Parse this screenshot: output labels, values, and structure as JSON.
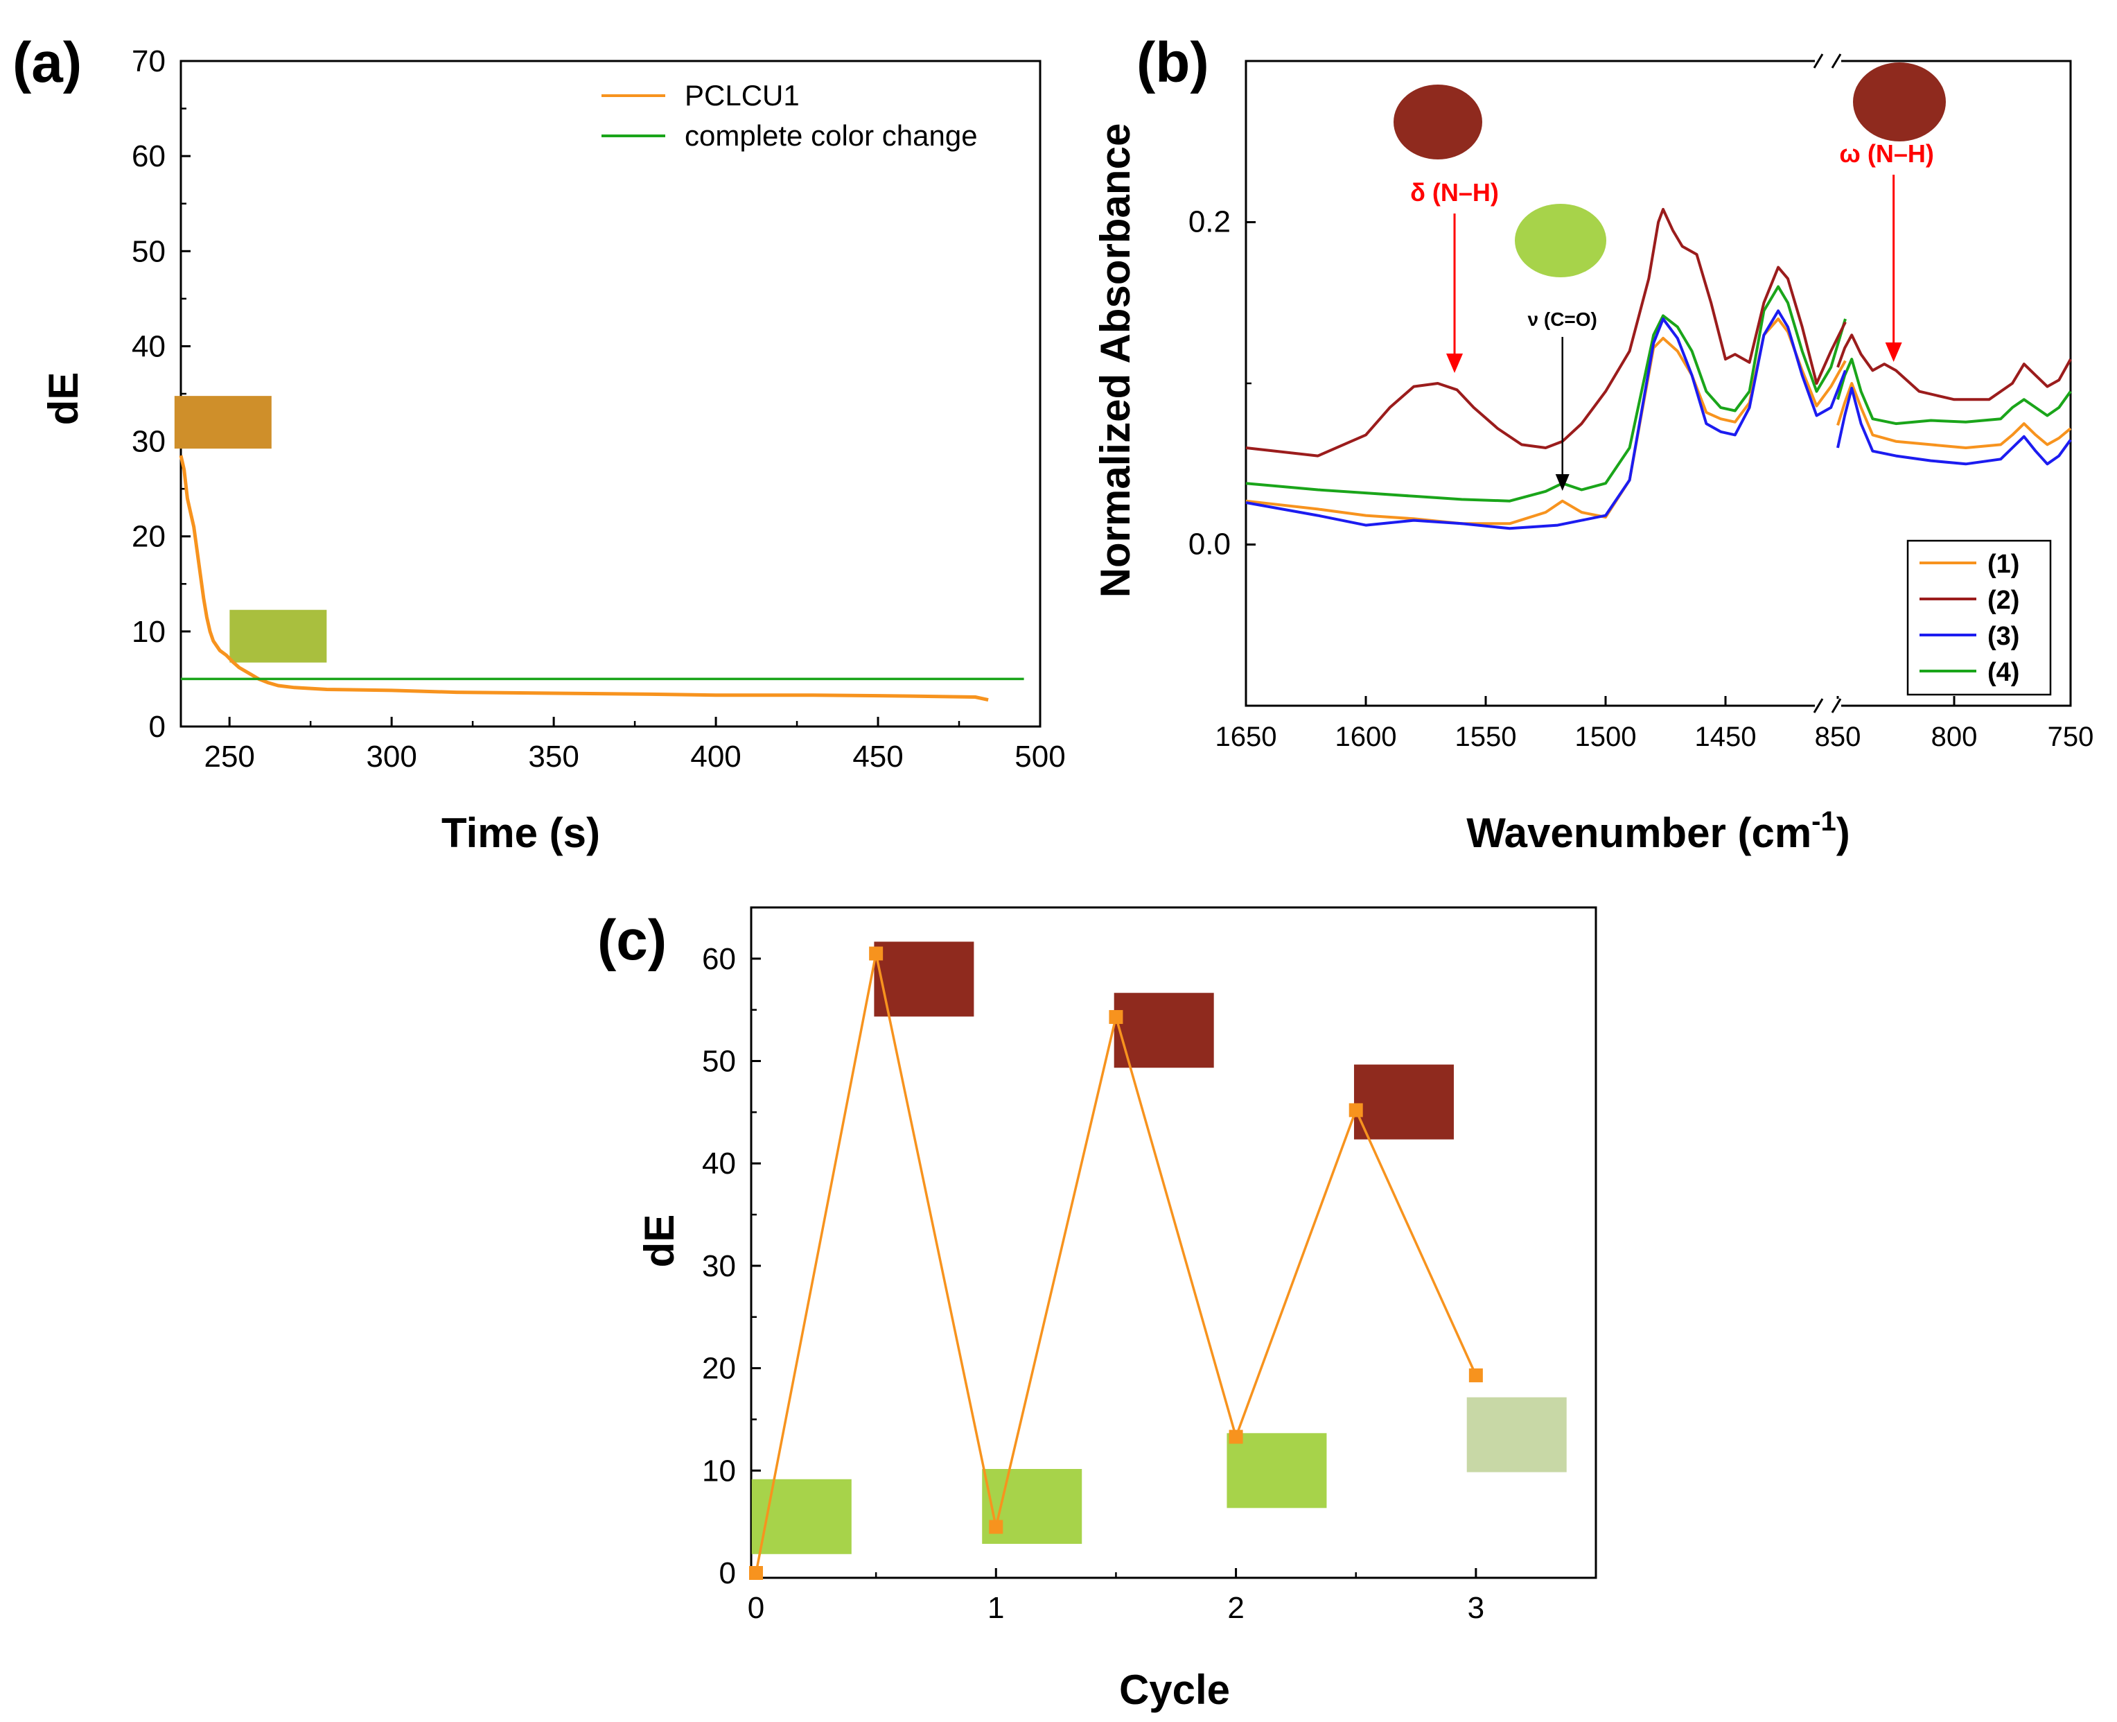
{
  "colors": {
    "orange": "#f7931e",
    "darkred": "#9b1c1c",
    "blue": "#1c1cf0",
    "green": "#1aa51a",
    "red_label": "#ff0000",
    "axis": "#000000",
    "swatch_orange": "#cf8f2a",
    "swatch_yellowgreen": "#a9bf3e",
    "swatch_red": "#8f2a1e",
    "swatch_green": "#a7d34a",
    "swatch_lightgreen": "#c8d8a6"
  },
  "chart_data": [
    {
      "panel": "(a)",
      "type": "line",
      "xlabel": "Time (s)",
      "ylabel": "dE",
      "xlim": [
        235,
        500
      ],
      "ylim": [
        0,
        70
      ],
      "xticks": [
        250,
        300,
        350,
        400,
        450,
        500
      ],
      "yticks": [
        0,
        10,
        20,
        30,
        40,
        50,
        60,
        70
      ],
      "legend": [
        "PCLCU1",
        "complete color change"
      ],
      "legend_position": "top-right",
      "series": [
        {
          "name": "PCLCU1",
          "x": [
            235,
            236,
            237,
            238,
            239,
            240,
            241,
            242,
            243,
            244,
            245,
            247,
            249,
            251,
            253,
            256,
            259,
            262,
            265,
            270,
            280,
            300,
            320,
            350,
            380,
            400,
            430,
            460,
            480,
            484
          ],
          "y": [
            28.5,
            27,
            24,
            22.5,
            21,
            18.5,
            16,
            13.5,
            11.5,
            10,
            9,
            8,
            7.5,
            6.8,
            6.2,
            5.6,
            5.0,
            4.6,
            4.3,
            4.1,
            3.9,
            3.8,
            3.6,
            3.5,
            3.4,
            3.3,
            3.3,
            3.2,
            3.1,
            2.8
          ]
        },
        {
          "name": "complete color change",
          "x": [
            235,
            495
          ],
          "y": [
            5,
            5
          ]
        }
      ],
      "swatches": [
        {
          "x": 248,
          "y": 32,
          "color": "orange"
        },
        {
          "x": 265,
          "y": 9.5,
          "color": "yellowgreen"
        }
      ]
    },
    {
      "panel": "(b)",
      "type": "line",
      "xlabel": "Wavenumber (cm",
      "xlabel_sup": "-1",
      "xlabel_end": ")",
      "ylabel": "Normalized Absorbance",
      "ylim": [
        -0.1,
        0.3
      ],
      "yticks": [
        0.0,
        0.2
      ],
      "yticklabels": [
        "0.0",
        "0.2"
      ],
      "segments": [
        {
          "xlim": [
            1650,
            1400
          ],
          "xticks": [
            1650,
            1600,
            1550,
            1500,
            1450
          ],
          "xticklabels": [
            "1650",
            "1600",
            "1550",
            "1500",
            "1450"
          ]
        },
        {
          "xlim": [
            850,
            750
          ],
          "xticks": [
            850,
            800,
            750
          ],
          "xticklabels": [
            "850",
            "800",
            "750"
          ]
        }
      ],
      "legend": [
        "(1)",
        "(2)",
        "(3)",
        "(4)"
      ],
      "legend_position": "bottom-right",
      "series": [
        {
          "name": "(1)",
          "x1": [
            1650,
            1620,
            1600,
            1580,
            1560,
            1540,
            1525,
            1518,
            1510,
            1500,
            1490,
            1480,
            1476,
            1470,
            1464,
            1458,
            1452,
            1446,
            1440,
            1434,
            1428,
            1424,
            1418,
            1412,
            1406,
            1400
          ],
          "y1": [
            0.027,
            0.022,
            0.018,
            0.016,
            0.013,
            0.013,
            0.02,
            0.027,
            0.02,
            0.017,
            0.04,
            0.122,
            0.128,
            0.12,
            0.105,
            0.082,
            0.078,
            0.076,
            0.088,
            0.13,
            0.14,
            0.132,
            0.108,
            0.086,
            0.098,
            0.114
          ],
          "x2": [
            850,
            847,
            844,
            840,
            835,
            825,
            810,
            795,
            780,
            775,
            770,
            765,
            760,
            755,
            750
          ],
          "y2": [
            0.074,
            0.088,
            0.1,
            0.085,
            0.068,
            0.064,
            0.062,
            0.06,
            0.062,
            0.068,
            0.075,
            0.068,
            0.062,
            0.066,
            0.072
          ]
        },
        {
          "name": "(2)",
          "x1": [
            1650,
            1620,
            1600,
            1590,
            1580,
            1570,
            1562,
            1555,
            1545,
            1535,
            1525,
            1518,
            1510,
            1500,
            1490,
            1482,
            1478,
            1476,
            1472,
            1468,
            1462,
            1456,
            1450,
            1446,
            1440,
            1434,
            1428,
            1424,
            1418,
            1412,
            1406,
            1400
          ],
          "y1": [
            0.06,
            0.055,
            0.068,
            0.085,
            0.098,
            0.1,
            0.096,
            0.085,
            0.072,
            0.062,
            0.06,
            0.064,
            0.075,
            0.095,
            0.12,
            0.165,
            0.2,
            0.208,
            0.195,
            0.185,
            0.18,
            0.15,
            0.115,
            0.118,
            0.113,
            0.15,
            0.172,
            0.165,
            0.135,
            0.1,
            0.12,
            0.138
          ],
          "x2": [
            850,
            847,
            844,
            840,
            835,
            830,
            825,
            815,
            800,
            785,
            775,
            770,
            765,
            760,
            755,
            750
          ],
          "y2": [
            0.11,
            0.122,
            0.13,
            0.118,
            0.108,
            0.112,
            0.108,
            0.095,
            0.09,
            0.09,
            0.1,
            0.112,
            0.105,
            0.098,
            0.102,
            0.115
          ]
        },
        {
          "name": "(3)",
          "x1": [
            1650,
            1620,
            1600,
            1580,
            1560,
            1540,
            1520,
            1510,
            1500,
            1490,
            1480,
            1476,
            1470,
            1464,
            1458,
            1452,
            1446,
            1440,
            1434,
            1428,
            1424,
            1418,
            1412,
            1406,
            1400
          ],
          "y1": [
            0.026,
            0.018,
            0.012,
            0.015,
            0.013,
            0.01,
            0.012,
            0.015,
            0.018,
            0.04,
            0.125,
            0.14,
            0.128,
            0.105,
            0.075,
            0.07,
            0.068,
            0.085,
            0.13,
            0.145,
            0.135,
            0.105,
            0.08,
            0.085,
            0.108
          ],
          "x2": [
            850,
            847,
            844,
            840,
            835,
            825,
            810,
            795,
            780,
            775,
            770,
            765,
            760,
            755,
            750
          ],
          "y2": [
            0.06,
            0.08,
            0.097,
            0.075,
            0.058,
            0.055,
            0.052,
            0.05,
            0.053,
            0.06,
            0.067,
            0.058,
            0.05,
            0.055,
            0.065
          ]
        },
        {
          "name": "(4)",
          "x1": [
            1650,
            1620,
            1600,
            1580,
            1560,
            1540,
            1525,
            1518,
            1510,
            1500,
            1490,
            1480,
            1476,
            1470,
            1464,
            1458,
            1452,
            1446,
            1440,
            1434,
            1428,
            1424,
            1418,
            1412,
            1406,
            1400
          ],
          "y1": [
            0.038,
            0.034,
            0.032,
            0.03,
            0.028,
            0.027,
            0.033,
            0.038,
            0.034,
            0.038,
            0.06,
            0.13,
            0.142,
            0.135,
            0.12,
            0.095,
            0.085,
            0.083,
            0.095,
            0.145,
            0.16,
            0.15,
            0.12,
            0.095,
            0.11,
            0.14
          ],
          "x2": [
            850,
            847,
            844,
            840,
            835,
            825,
            810,
            795,
            780,
            775,
            770,
            765,
            760,
            755,
            750
          ],
          "y2": [
            0.09,
            0.105,
            0.115,
            0.095,
            0.078,
            0.075,
            0.077,
            0.076,
            0.078,
            0.085,
            0.09,
            0.085,
            0.08,
            0.085,
            0.095
          ]
        }
      ],
      "annotations": [
        {
          "label": "δ (N–H)",
          "x": 1563,
          "color": "red"
        },
        {
          "label": "ν (C=O)",
          "x": 1518,
          "color": "black"
        },
        {
          "label": "ω (N–H)",
          "x": 826,
          "color": "red"
        }
      ],
      "break_mark": "//"
    },
    {
      "panel": "(c)",
      "type": "line",
      "xlabel": "Cycle",
      "ylabel": "dE",
      "xlim": [
        0,
        3.5
      ],
      "ylim": [
        0,
        65
      ],
      "xticks": [
        0,
        1,
        2,
        3
      ],
      "yticks": [
        0,
        10,
        20,
        30,
        40,
        50,
        60
      ],
      "series": [
        {
          "name": "dE",
          "x": [
            0,
            0.5,
            1,
            1.5,
            2,
            2.5,
            3
          ],
          "y": [
            0,
            60.5,
            4.5,
            54.3,
            13.3,
            45.2,
            19.3
          ]
        }
      ],
      "swatches": [
        {
          "x": 0.7,
          "y": 58,
          "color": "red"
        },
        {
          "x": 1.7,
          "y": 53,
          "color": "red"
        },
        {
          "x": 2.7,
          "y": 46,
          "color": "red"
        },
        {
          "x": 0.19,
          "y": 5.5,
          "color": "green"
        },
        {
          "x": 1.15,
          "y": 6.5,
          "color": "green"
        },
        {
          "x": 2.17,
          "y": 10,
          "color": "green"
        },
        {
          "x": 3.17,
          "y": 13.5,
          "color": "lightgreen"
        }
      ]
    }
  ]
}
